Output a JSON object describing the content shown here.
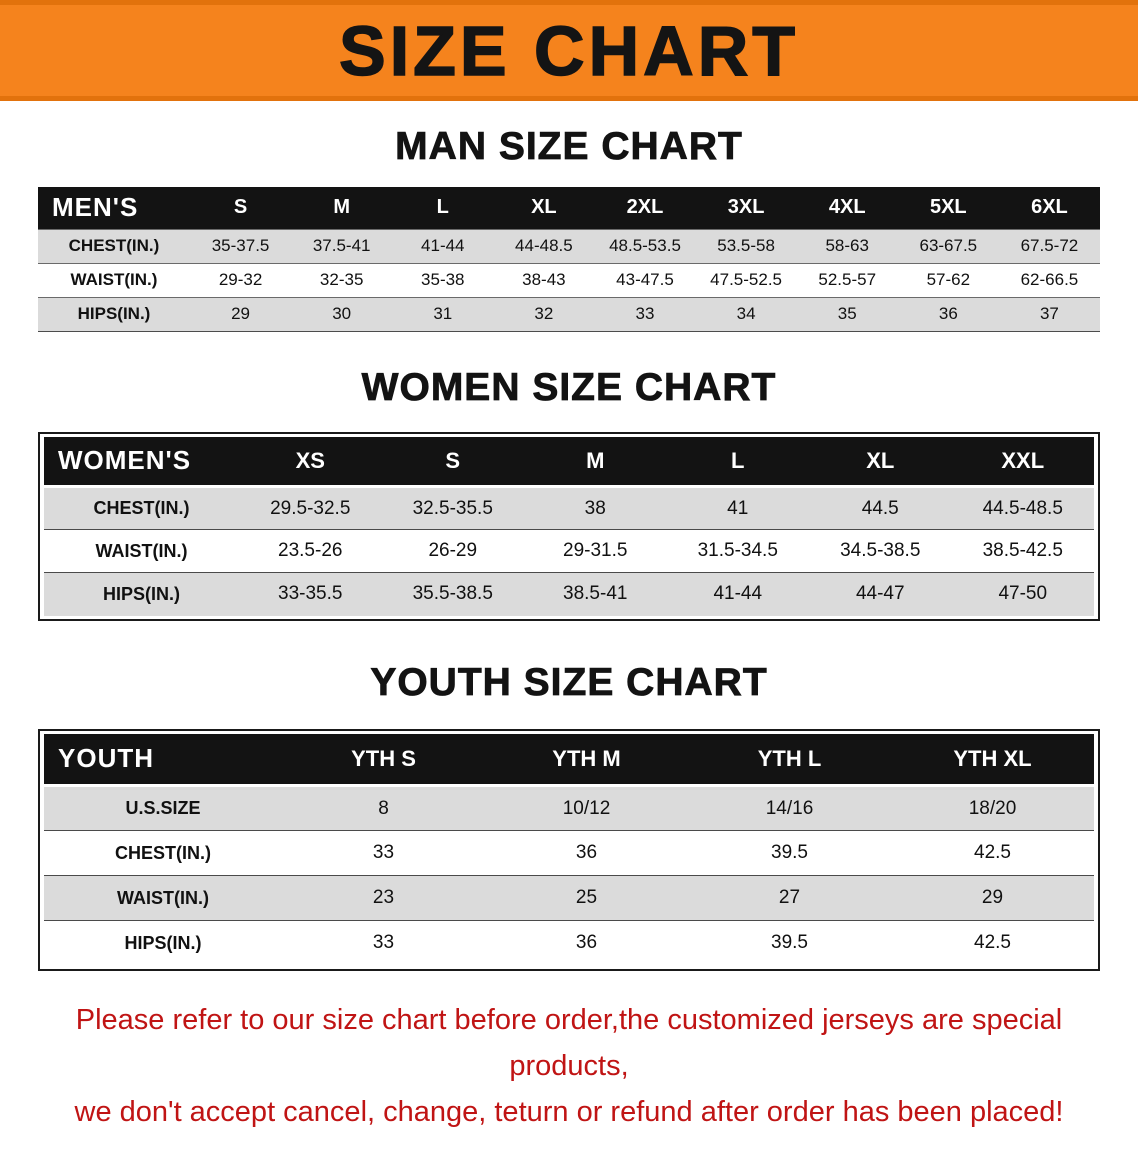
{
  "banner": {
    "title": "SIZE CHART",
    "bg_color": "#f5831d"
  },
  "sections": [
    {
      "heading": "MAN SIZE CHART",
      "table": {
        "header": [
          "MEN'S",
          "S",
          "M",
          "L",
          "XL",
          "2XL",
          "3XL",
          "4XL",
          "5XL",
          "6XL"
        ],
        "rows": [
          [
            "CHEST(IN.)",
            "35-37.5",
            "37.5-41",
            "41-44",
            "44-48.5",
            "48.5-53.5",
            "53.5-58",
            "58-63",
            "63-67.5",
            "67.5-72"
          ],
          [
            "WAIST(IN.)",
            "29-32",
            "32-35",
            "35-38",
            "38-43",
            "43-47.5",
            "47.5-52.5",
            "52.5-57",
            "57-62",
            "62-66.5"
          ],
          [
            "HIPS(IN.)",
            "29",
            "30",
            "31",
            "32",
            "33",
            "34",
            "35",
            "36",
            "37"
          ]
        ]
      }
    },
    {
      "heading": "WOMEN SIZE CHART",
      "table": {
        "header": [
          "WOMEN'S",
          "XS",
          "S",
          "M",
          "L",
          "XL",
          "XXL"
        ],
        "rows": [
          [
            "CHEST(IN.)",
            "29.5-32.5",
            "32.5-35.5",
            "38",
            "41",
            "44.5",
            "44.5-48.5"
          ],
          [
            "WAIST(IN.)",
            "23.5-26",
            "26-29",
            "29-31.5",
            "31.5-34.5",
            "34.5-38.5",
            "38.5-42.5"
          ],
          [
            "HIPS(IN.)",
            "33-35.5",
            "35.5-38.5",
            "38.5-41",
            "41-44",
            "44-47",
            "47-50"
          ]
        ]
      }
    },
    {
      "heading": "YOUTH SIZE CHART",
      "table": {
        "header": [
          "YOUTH",
          "YTH S",
          "YTH M",
          "YTH L",
          "YTH XL"
        ],
        "rows": [
          [
            "U.S.SIZE",
            "8",
            "10/12",
            "14/16",
            "18/20"
          ],
          [
            "CHEST(IN.)",
            "33",
            "36",
            "39.5",
            "42.5"
          ],
          [
            "WAIST(IN.)",
            "23",
            "25",
            "27",
            "29"
          ],
          [
            "HIPS(IN.)",
            "33",
            "36",
            "39.5",
            "42.5"
          ]
        ]
      }
    }
  ],
  "disclaimer": {
    "line1": "Please refer to our size chart before order,the customized jerseys are special products,",
    "line2": "we don't accept cancel, change, teturn or refund after order has been placed!"
  }
}
